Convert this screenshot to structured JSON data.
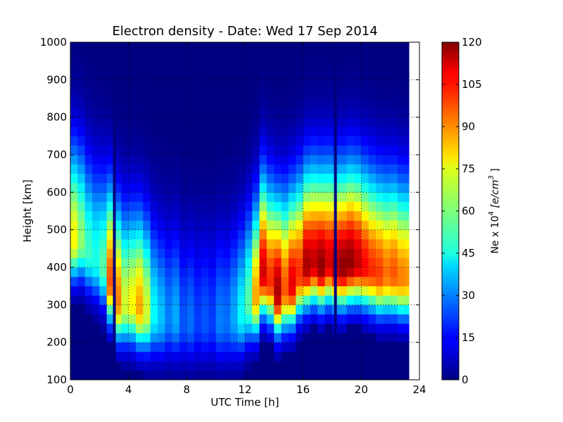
{
  "chart_data": {
    "type": "heatmap",
    "title": "Electron density - Date: Wed 17 Sep 2014",
    "xlabel": "UTC Time [h]",
    "ylabel": "Height [km]",
    "xlim": [
      0,
      24
    ],
    "ylim": [
      100,
      1000
    ],
    "x_ticks": [
      "0",
      "4",
      "8",
      "12",
      "16",
      "20",
      "24"
    ],
    "y_ticks": [
      "100",
      "200",
      "300",
      "400",
      "500",
      "600",
      "700",
      "800",
      "900",
      "1000"
    ],
    "grid": true,
    "colormap": "jet",
    "colorbar": {
      "label_prefix": "Ne x 10",
      "label_exp": "4",
      "label_units": "[e/cm",
      "label_units_exp": "3",
      "label_units_close": "]",
      "range": [
        0,
        120
      ],
      "ticks": [
        "0",
        "15",
        "30",
        "45",
        "60",
        "75",
        "90",
        "105",
        "120"
      ]
    },
    "data_extent_x": [
      0,
      23.3
    ],
    "time_profiles": [
      {
        "t": 0.0,
        "peak_height": 470,
        "peak_value": 75
      },
      {
        "t": 0.5,
        "peak_height": 470,
        "peak_value": 62
      },
      {
        "t": 1.0,
        "peak_height": 440,
        "peak_value": 52
      },
      {
        "t": 1.5,
        "peak_height": 420,
        "peak_value": 48
      },
      {
        "t": 2.0,
        "peak_height": 400,
        "peak_value": 55
      },
      {
        "t": 2.5,
        "peak_height": 360,
        "peak_value": 95
      },
      {
        "t": 3.0,
        "peak_height": 310,
        "peak_value": 90
      },
      {
        "t": 3.5,
        "peak_height": 300,
        "peak_value": 70
      },
      {
        "t": 4.0,
        "peak_height": 300,
        "peak_value": 75
      },
      {
        "t": 4.5,
        "peak_height": 290,
        "peak_value": 85
      },
      {
        "t": 5.0,
        "peak_height": 280,
        "peak_value": 70
      },
      {
        "t": 5.5,
        "peak_height": 270,
        "peak_value": 45
      },
      {
        "t": 6.0,
        "peak_height": 260,
        "peak_value": 38
      },
      {
        "t": 6.5,
        "peak_height": 260,
        "peak_value": 30
      },
      {
        "t": 7.0,
        "peak_height": 260,
        "peak_value": 35
      },
      {
        "t": 7.5,
        "peak_height": 250,
        "peak_value": 25
      },
      {
        "t": 8.0,
        "peak_height": 250,
        "peak_value": 28
      },
      {
        "t": 8.5,
        "peak_height": 250,
        "peak_value": 22
      },
      {
        "t": 9.0,
        "peak_height": 250,
        "peak_value": 25
      },
      {
        "t": 9.5,
        "peak_height": 250,
        "peak_value": 22
      },
      {
        "t": 10.0,
        "peak_height": 250,
        "peak_value": 30
      },
      {
        "t": 10.5,
        "peak_height": 250,
        "peak_value": 28
      },
      {
        "t": 11.0,
        "peak_height": 260,
        "peak_value": 35
      },
      {
        "t": 11.5,
        "peak_height": 270,
        "peak_value": 45
      },
      {
        "t": 12.0,
        "peak_height": 300,
        "peak_value": 55
      },
      {
        "t": 12.5,
        "peak_height": 320,
        "peak_value": 85
      },
      {
        "t": 13.0,
        "peak_height": 380,
        "peak_value": 110
      },
      {
        "t": 13.5,
        "peak_height": 360,
        "peak_value": 100
      },
      {
        "t": 14.0,
        "peak_height": 330,
        "peak_value": 115
      },
      {
        "t": 14.5,
        "peak_height": 340,
        "peak_value": 95
      },
      {
        "t": 15.0,
        "peak_height": 350,
        "peak_value": 108
      },
      {
        "t": 15.5,
        "peak_height": 380,
        "peak_value": 100
      },
      {
        "t": 16.0,
        "peak_height": 400,
        "peak_value": 115
      },
      {
        "t": 16.5,
        "peak_height": 410,
        "peak_value": 112
      },
      {
        "t": 17.0,
        "peak_height": 400,
        "peak_value": 118
      },
      {
        "t": 17.5,
        "peak_height": 410,
        "peak_value": 110
      },
      {
        "t": 18.0,
        "peak_height": 400,
        "peak_value": 115
      },
      {
        "t": 18.5,
        "peak_height": 400,
        "peak_value": 118
      },
      {
        "t": 19.0,
        "peak_height": 410,
        "peak_value": 118
      },
      {
        "t": 19.5,
        "peak_height": 410,
        "peak_value": 112
      },
      {
        "t": 20.0,
        "peak_height": 400,
        "peak_value": 105
      },
      {
        "t": 20.5,
        "peak_height": 390,
        "peak_value": 100
      },
      {
        "t": 21.0,
        "peak_height": 380,
        "peak_value": 98
      },
      {
        "t": 21.5,
        "peak_height": 380,
        "peak_value": 92
      },
      {
        "t": 22.0,
        "peak_height": 380,
        "peak_value": 95
      },
      {
        "t": 22.5,
        "peak_height": 370,
        "peak_value": 90
      },
      {
        "t": 23.0,
        "peak_height": 370,
        "peak_value": 88
      }
    ],
    "gap_times": [
      3.0,
      18.2
    ]
  }
}
